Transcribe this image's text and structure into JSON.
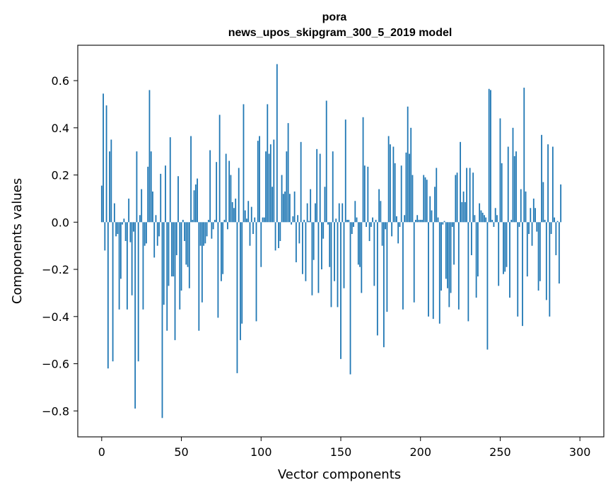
{
  "chart_data": {
    "type": "bar",
    "title": "pora",
    "subtitle": "news_upos_skipgram_300_5_2019 model",
    "xlabel": "Vector components",
    "ylabel": "Components values",
    "xlim": [
      -15,
      315
    ],
    "ylim": [
      -0.91,
      0.75
    ],
    "xticks": [
      0,
      50,
      100,
      150,
      200,
      250,
      300
    ],
    "xtick_labels": [
      "0",
      "50",
      "100",
      "150",
      "200",
      "250",
      "300"
    ],
    "yticks": [
      -0.8,
      -0.6,
      -0.4,
      -0.2,
      0.0,
      0.2,
      0.4,
      0.6
    ],
    "ytick_labels": [
      "−0.8",
      "−0.6",
      "−0.4",
      "−0.2",
      "0.0",
      "0.2",
      "0.4",
      "0.6"
    ],
    "grid": false,
    "bar_color": "#1f77b4",
    "values": [
      0.155,
      0.545,
      -0.12,
      0.495,
      -0.62,
      0.3,
      0.35,
      -0.59,
      0.08,
      -0.06,
      -0.05,
      -0.37,
      -0.24,
      -0.01,
      0.015,
      -0.08,
      -0.37,
      0.1,
      -0.085,
      -0.31,
      -0.04,
      -0.79,
      0.3,
      -0.59,
      0.03,
      0.14,
      -0.37,
      -0.1,
      -0.09,
      0.235,
      0.56,
      0.3,
      0.13,
      -0.15,
      0.03,
      -0.1,
      -0.06,
      0.205,
      -0.83,
      -0.35,
      0.24,
      -0.46,
      -0.27,
      0.36,
      -0.23,
      -0.23,
      -0.5,
      -0.14,
      0.195,
      -0.37,
      -0.29,
      0.01,
      -0.08,
      -0.18,
      -0.19,
      -0.28,
      0.365,
      0.01,
      0.135,
      0.16,
      0.185,
      -0.46,
      -0.1,
      -0.34,
      -0.1,
      -0.09,
      -0.06,
      0.01,
      0.305,
      -0.07,
      -0.03,
      0.01,
      0.255,
      -0.405,
      0.455,
      -0.25,
      -0.22,
      0.01,
      0.29,
      -0.03,
      0.26,
      0.2,
      0.085,
      0.06,
      0.1,
      -0.64,
      0.23,
      -0.5,
      -0.43,
      0.5,
      0.05,
      0.015,
      0.09,
      -0.1,
      0.065,
      -0.05,
      0.02,
      -0.42,
      0.345,
      0.365,
      -0.19,
      0.02,
      0.02,
      0.3,
      0.5,
      0.29,
      0.33,
      0.15,
      0.35,
      -0.12,
      0.67,
      -0.11,
      -0.08,
      0.2,
      0.12,
      0.13,
      0.3,
      0.42,
      0.12,
      -0.01,
      0.025,
      0.13,
      -0.17,
      0.03,
      -0.09,
      0.34,
      -0.22,
      0.01,
      -0.25,
      0.08,
      0.005,
      0.14,
      -0.31,
      -0.16,
      0.08,
      0.31,
      -0.3,
      0.29,
      -0.2,
      -0.07,
      0.15,
      0.515,
      -0.01,
      -0.19,
      -0.36,
      0.3,
      -0.25,
      0.015,
      -0.36,
      0.08,
      -0.58,
      0.08,
      -0.28,
      0.435,
      0.01,
      0.01,
      -0.645,
      -0.05,
      -0.02,
      0.09,
      0.02,
      -0.18,
      -0.19,
      -0.3,
      0.445,
      0.24,
      -0.02,
      0.235,
      -0.08,
      -0.02,
      0.02,
      -0.27,
      0.01,
      -0.48,
      0.14,
      0.09,
      -0.1,
      -0.53,
      -0.03,
      -0.38,
      0.365,
      0.33,
      -0.06,
      0.32,
      0.25,
      0.025,
      -0.09,
      -0.02,
      0.24,
      -0.37,
      0.03,
      0.295,
      0.49,
      0.29,
      0.4,
      0.2,
      -0.34,
      0.01,
      0.03,
      0.01,
      0.01,
      0.01,
      0.2,
      0.19,
      0.18,
      -0.4,
      0.11,
      0.05,
      -0.41,
      0.15,
      0.23,
      0.02,
      -0.43,
      -0.29,
      -0.01,
      0.005,
      -0.24,
      -0.28,
      -0.36,
      -0.3,
      -0.02,
      -0.18,
      0.2,
      0.21,
      -0.37,
      0.34,
      0.085,
      0.13,
      0.085,
      0.23,
      -0.42,
      0.23,
      -0.14,
      0.21,
      0.03,
      -0.32,
      -0.23,
      0.08,
      0.05,
      0.04,
      0.03,
      0.02,
      -0.54,
      0.565,
      0.56,
      0.01,
      -0.02,
      0.06,
      0.03,
      -0.27,
      0.44,
      0.25,
      -0.22,
      -0.21,
      -0.19,
      0.32,
      -0.32,
      0.01,
      0.4,
      0.28,
      0.3,
      -0.4,
      -0.02,
      0.14,
      -0.44,
      0.57,
      0.13,
      -0.23,
      -0.05,
      0.06,
      -0.1,
      0.1,
      0.06,
      -0.04,
      -0.29,
      -0.25,
      0.37,
      0.17,
      0.01,
      -0.33,
      0.33,
      -0.4,
      -0.05,
      0.32,
      0.02,
      -0.14,
      0.005,
      -0.26,
      0.16
    ]
  }
}
